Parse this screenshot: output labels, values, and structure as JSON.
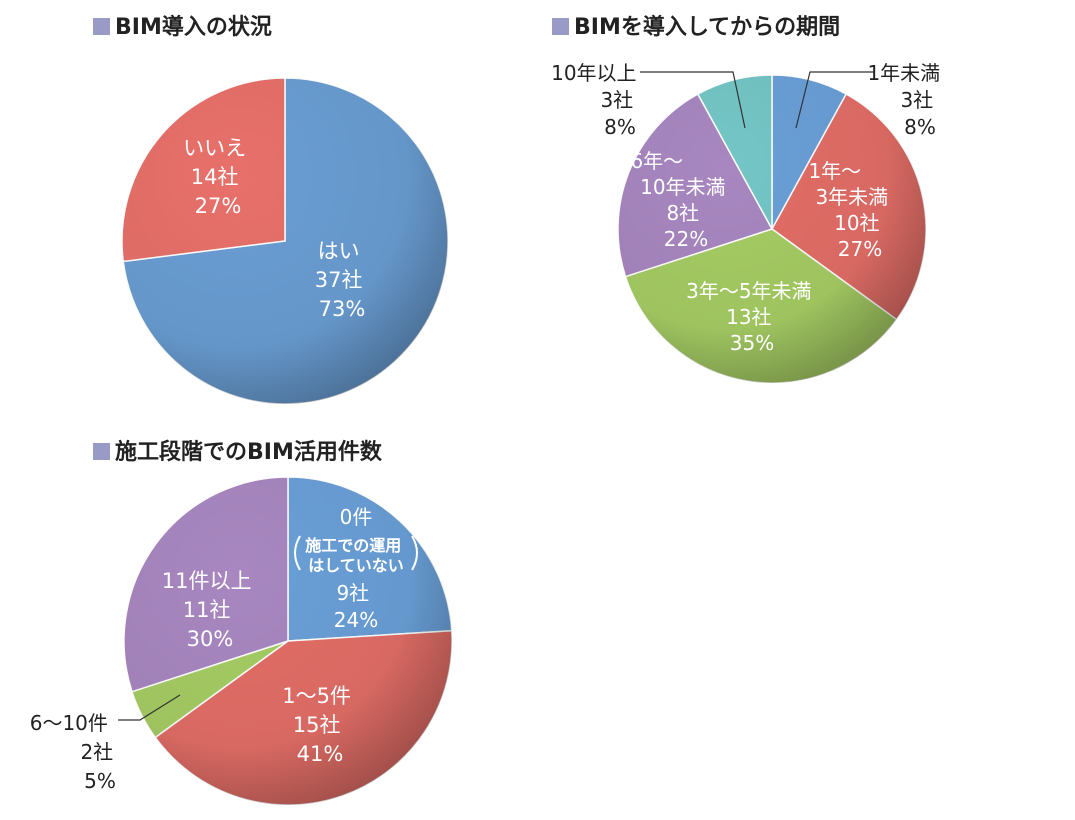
{
  "chart_data": [
    {
      "type": "pie",
      "title": "BIM導入の状況",
      "slices": [
        {
          "label": "はい",
          "count": "37社",
          "percent": "73%",
          "value": 73,
          "color": "#6a9ed4",
          "label_lines": [
            "はい",
            "37社",
            "73%"
          ]
        },
        {
          "label": "いいえ",
          "count": "14社",
          "percent": "27%",
          "value": 27,
          "color": "#e8706a",
          "label_lines": [
            "いいえ",
            "14社",
            "27%"
          ]
        }
      ]
    },
    {
      "type": "pie",
      "title": "BIMを導入してからの期間",
      "slices": [
        {
          "label": "1年未満",
          "count": "3社",
          "percent": "8%",
          "value": 8,
          "color": "#6aa0d8",
          "label_lines": [
            "1年未満",
            "3社",
            "8%"
          ]
        },
        {
          "label": "1年〜3年未満",
          "count": "10社",
          "percent": "27%",
          "value": 27,
          "color": "#e36e67",
          "label_lines": [
            "1年〜",
            "3年未満",
            "10社",
            "27%"
          ]
        },
        {
          "label": "3年〜5年未満",
          "count": "13社",
          "percent": "35%",
          "value": 35,
          "color": "#a6cd64",
          "label_lines": [
            "3年〜5年未満",
            "13社",
            "35%"
          ]
        },
        {
          "label": "6年〜10年未満",
          "count": "8社",
          "percent": "22%",
          "value": 22,
          "color": "#a887c0",
          "label_lines": [
            "6年〜",
            "10年未満",
            "8社",
            "22%"
          ]
        },
        {
          "label": "10年以上",
          "count": "3社",
          "percent": "8%",
          "value": 8,
          "color": "#74c6c6",
          "label_lines": [
            "10年以上",
            "3社",
            "8%"
          ]
        }
      ]
    },
    {
      "type": "pie",
      "title": "施工段階でのBIM活用件数",
      "slices": [
        {
          "label": "0件（施工での運用はしていない）",
          "count": "9社",
          "percent": "24%",
          "value": 24,
          "color": "#6aa0d8",
          "label_lines": [
            "0件",
            "施工での運用",
            "はしていない",
            "9社",
            "24%"
          ]
        },
        {
          "label": "1〜5件",
          "count": "15社",
          "percent": "41%",
          "value": 41,
          "color": "#e36e67",
          "label_lines": [
            "1〜5件",
            "15社",
            "41%"
          ]
        },
        {
          "label": "6〜10件",
          "count": "2社",
          "percent": "5%",
          "value": 5,
          "color": "#a6cd64",
          "label_lines": [
            "6〜10件",
            "2社",
            "5%"
          ]
        },
        {
          "label": "11件以上",
          "count": "11社",
          "percent": "30%",
          "value": 30,
          "color": "#a887c0",
          "label_lines": [
            "11件以上",
            "11社",
            "30%"
          ]
        }
      ]
    }
  ]
}
